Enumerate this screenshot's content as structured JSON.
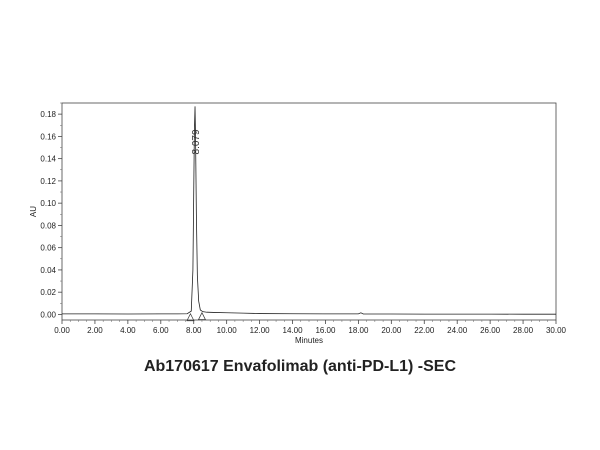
{
  "caption": "Ab170617 Envafolimab (anti-PD-L1) -SEC",
  "chart_data": {
    "type": "line",
    "title": "",
    "xlabel": "Minutes",
    "ylabel": "AU",
    "xlim": [
      0,
      30
    ],
    "ylim": [
      -0.005,
      0.19
    ],
    "x_ticks": [
      0,
      2,
      4,
      6,
      8,
      10,
      12,
      14,
      16,
      18,
      20,
      22,
      24,
      26,
      28,
      30
    ],
    "x_tick_labels": [
      "0.00",
      "2.00",
      "4.00",
      "6.00",
      "8.00",
      "10.00",
      "12.00",
      "14.00",
      "16.00",
      "18.00",
      "20.00",
      "22.00",
      "24.00",
      "26.00",
      "28.00",
      "30.00"
    ],
    "y_ticks": [
      0,
      0.02,
      0.04,
      0.06,
      0.08,
      0.1,
      0.12,
      0.14,
      0.16,
      0.18
    ],
    "y_tick_labels": [
      "0.00",
      "0.02",
      "0.04",
      "0.06",
      "0.08",
      "0.10",
      "0.12",
      "0.14",
      "0.16",
      "0.18"
    ],
    "grid": false,
    "series": [
      {
        "x": [
          0,
          2,
          4,
          6,
          7.0,
          7.6,
          7.85,
          7.95,
          8.0,
          8.04,
          8.079,
          8.11,
          8.16,
          8.22,
          8.3,
          8.4,
          8.55,
          8.8,
          9.2,
          10,
          11,
          12,
          14,
          16,
          17.5,
          18,
          18.15,
          18.3,
          20,
          22,
          24,
          26,
          28,
          30
        ],
        "y": [
          0.0005,
          0.0005,
          0.0004,
          0.0005,
          0.0005,
          0.0006,
          0.003,
          0.04,
          0.11,
          0.165,
          0.187,
          0.16,
          0.09,
          0.035,
          0.012,
          0.004,
          0.0025,
          0.002,
          0.0018,
          0.0015,
          0.0012,
          0.0008,
          0.0006,
          0.0005,
          0.0005,
          0.0005,
          0.0015,
          0.0004,
          0.0004,
          0.0003,
          0.0003,
          0.0003,
          0.0002,
          0.0002
        ],
        "color": "#222222"
      }
    ],
    "annotations": [
      {
        "text": "8.079",
        "x": 8.079,
        "y": 0.155
      }
    ],
    "integration_markers": [
      {
        "x": 7.8,
        "y": -0.003
      },
      {
        "x": 8.5,
        "y": -0.002
      }
    ]
  }
}
